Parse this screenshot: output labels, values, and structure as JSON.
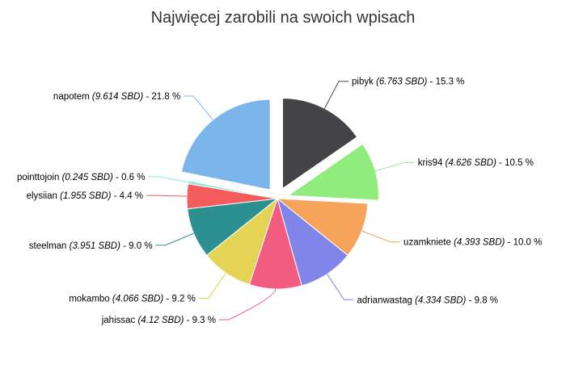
{
  "chart_data": {
    "type": "pie",
    "title": "Najwięcej zarobili na swoich wpisach",
    "unit": "SBD",
    "slices": [
      {
        "name": "pibyk",
        "value": 6.763,
        "percent": "15.3 %",
        "color": "#434348",
        "exploded": true
      },
      {
        "name": "kris94",
        "value": 4.626,
        "percent": "10.5 %",
        "color": "#90ed7d",
        "exploded": true
      },
      {
        "name": "uzamkniete",
        "value": 4.393,
        "percent": "10.0 %",
        "color": "#f7a35c",
        "exploded": false
      },
      {
        "name": "adrianwastag",
        "value": 4.334,
        "percent": "9.8 %",
        "color": "#8085e9",
        "exploded": false
      },
      {
        "name": "jahissac",
        "value": 4.12,
        "percent": "9.3 %",
        "color": "#f15c80",
        "exploded": false
      },
      {
        "name": "mokambo",
        "value": 4.066,
        "percent": "9.2 %",
        "color": "#e4d354",
        "exploded": false
      },
      {
        "name": "steelman",
        "value": 3.951,
        "percent": "9.0 %",
        "color": "#2b908f",
        "exploded": false
      },
      {
        "name": "elysiian",
        "value": 1.955,
        "percent": "4.4 %",
        "color": "#f45b5b",
        "exploded": false
      },
      {
        "name": "pointtojoin",
        "value": 0.245,
        "percent": "0.6 %",
        "color": "#91e8e1",
        "exploded": false
      },
      {
        "name": "napotem",
        "value": 9.614,
        "percent": "21.8 %",
        "color": "#7cb5ec",
        "exploded": true
      }
    ]
  }
}
